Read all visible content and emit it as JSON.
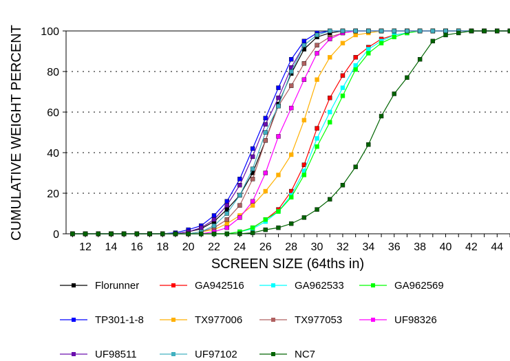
{
  "chart_data": {
    "type": "line",
    "title": "",
    "xlabel": "SCREEN SIZE (64ths in)",
    "ylabel": "CUMULATIVE WEIGHT PERCENT",
    "xlim": [
      10.5,
      45
    ],
    "ylim": [
      0,
      100
    ],
    "x_ticks": [
      "12",
      "14",
      "16",
      "18",
      "20",
      "22",
      "24",
      "26",
      "28",
      "30",
      "32",
      "34",
      "36",
      "38",
      "40",
      "42",
      "44"
    ],
    "y_ticks": [
      "0",
      "20",
      "40",
      "60",
      "80",
      "100"
    ],
    "grid": "horizontal dotted",
    "legend_position": "bottom",
    "x": [
      11,
      12,
      13,
      14,
      15,
      16,
      17,
      18,
      19,
      20,
      21,
      22,
      23,
      24,
      25,
      26,
      27,
      28,
      29,
      30,
      31,
      32,
      33,
      34,
      35,
      36,
      37,
      38,
      39,
      40,
      41,
      42,
      43,
      44,
      45
    ],
    "series": [
      {
        "name": "Florunner",
        "color": "#000000",
        "values": [
          0,
          0,
          0,
          0,
          0,
          0,
          0,
          0,
          0,
          1.0,
          2.5,
          6,
          12,
          19,
          30,
          46,
          64,
          79,
          91,
          97,
          99,
          100,
          100,
          100,
          100,
          100,
          100,
          100,
          100,
          100,
          100,
          100,
          100,
          100,
          100
        ]
      },
      {
        "name": "GA942516",
        "color": "#ff0000",
        "values": [
          0,
          0,
          0,
          0,
          0,
          0,
          0,
          0,
          0,
          0,
          0,
          0,
          0,
          1,
          3,
          7,
          12,
          21,
          34,
          52,
          67,
          78,
          87,
          92,
          96,
          98,
          99,
          100,
          100,
          100,
          100,
          100,
          100,
          100,
          100
        ]
      },
      {
        "name": "GA962533",
        "color": "#00ffff",
        "values": [
          0,
          0,
          0,
          0,
          0,
          0,
          0,
          0,
          0,
          0,
          0,
          0,
          0,
          1,
          2.5,
          6,
          11,
          19,
          31,
          47,
          60,
          72,
          83,
          91,
          95,
          98,
          99,
          100,
          100,
          100,
          100,
          100,
          100,
          100,
          100
        ]
      },
      {
        "name": "GA962569",
        "color": "#00ff00",
        "values": [
          0,
          0,
          0,
          0,
          0,
          0,
          0,
          0,
          0,
          0,
          0,
          0,
          0,
          1,
          3,
          7,
          11,
          18,
          29,
          43,
          55,
          68,
          81,
          89,
          94,
          97,
          99,
          100,
          100,
          100,
          100,
          100,
          100,
          100,
          100
        ]
      },
      {
        "name": "TP301-1-8",
        "color": "#0000ff",
        "values": [
          0,
          0,
          0,
          0,
          0,
          0,
          0,
          0,
          0.5,
          2,
          4,
          9,
          16,
          27,
          42,
          57,
          72,
          86,
          95,
          99,
          100,
          100,
          100,
          100,
          100,
          100,
          100,
          100,
          100,
          100,
          100,
          100,
          100,
          100,
          100
        ]
      },
      {
        "name": "TX977006",
        "color": "#ffb000",
        "values": [
          0,
          0,
          0,
          0,
          0,
          0,
          0,
          0,
          0,
          0,
          1,
          2,
          5,
          9,
          14,
          21,
          29,
          39,
          56,
          76,
          87,
          94,
          98,
          99,
          100,
          100,
          100,
          100,
          100,
          100,
          100,
          100,
          100,
          100,
          100
        ]
      },
      {
        "name": "TX977053",
        "color": "#b06060",
        "values": [
          0,
          0,
          0,
          0,
          0,
          0,
          0,
          0,
          0,
          0,
          1,
          3,
          7,
          14,
          27,
          46,
          63,
          73,
          84,
          93,
          97,
          99,
          100,
          100,
          100,
          100,
          100,
          100,
          100,
          100,
          100,
          100,
          100,
          100,
          100
        ]
      },
      {
        "name": "UF98326",
        "color": "#ff00ff",
        "values": [
          0,
          0,
          0,
          0,
          0,
          0,
          0,
          0,
          0,
          0,
          0,
          1,
          3,
          8,
          16,
          30,
          48,
          62,
          76,
          89,
          96,
          99,
          100,
          100,
          100,
          100,
          100,
          100,
          100,
          100,
          100,
          100,
          100,
          100,
          100
        ]
      },
      {
        "name": "UF98511",
        "color": "#6a0dad",
        "values": [
          0,
          0,
          0,
          0,
          0,
          0,
          0,
          0,
          0,
          1,
          3,
          7,
          14,
          24,
          38,
          54,
          67,
          82,
          93,
          98,
          100,
          100,
          100,
          100,
          100,
          100,
          100,
          100,
          100,
          100,
          100,
          100,
          100,
          100,
          100
        ]
      },
      {
        "name": "UF97102",
        "color": "#40b0c0",
        "values": [
          0,
          0,
          0,
          0,
          0,
          0,
          0,
          0,
          0,
          0,
          1,
          4,
          10,
          19,
          32,
          50,
          63,
          80,
          93,
          98,
          100,
          100,
          100,
          100,
          100,
          100,
          100,
          100,
          100,
          100,
          100,
          100,
          100,
          100,
          100
        ]
      },
      {
        "name": "NC7",
        "color": "#006400",
        "values": [
          0,
          0,
          0,
          0,
          0,
          0,
          0,
          0,
          0,
          0,
          0,
          0,
          0,
          0,
          0.5,
          2,
          3,
          5,
          8,
          12,
          17,
          24,
          33,
          44,
          58,
          69,
          77,
          86,
          95,
          98,
          99,
          100,
          100,
          100,
          100
        ]
      }
    ]
  }
}
